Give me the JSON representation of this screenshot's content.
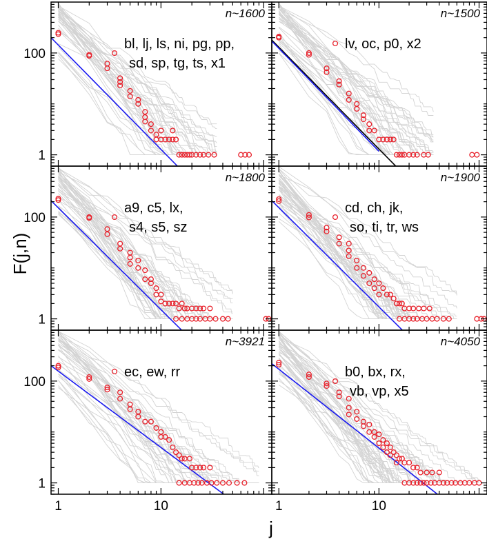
{
  "chart_data": {
    "type": "scatter",
    "xscale": "log",
    "yscale": "log",
    "xlabel": "j",
    "ylabel": "F(j,n)",
    "xlim": [
      0.85,
      120
    ],
    "ylim": [
      0.6,
      1000
    ],
    "xticks": [
      1,
      10
    ],
    "xtick_labels": [
      "1",
      "10"
    ],
    "yticks": [
      1,
      100
    ],
    "ytick_labels": [
      "1",
      "100"
    ],
    "colors": {
      "points": "#e8212b",
      "fit": "#1a1af0",
      "fit_alt": "#000000",
      "background_curves": "#d3d3d3"
    },
    "panels": [
      {
        "id": "p1",
        "n_label": "n~1600",
        "legend_lines": [
          "bl, lj, ls, ni, pg, pp,",
          "sd, sp, tg, ts, x1"
        ],
        "fit_color": "blue",
        "fit": {
          "x1": 0.85,
          "y1": 200,
          "slope": -2.05
        },
        "curves": 40,
        "xmax": 35,
        "points": [
          [
            1,
            250
          ],
          [
            1,
            235
          ],
          [
            2,
            92
          ],
          [
            2,
            88
          ],
          [
            3,
            62
          ],
          [
            3,
            50
          ],
          [
            4,
            32
          ],
          [
            4,
            27
          ],
          [
            4,
            23
          ],
          [
            5,
            18
          ],
          [
            5,
            14
          ],
          [
            6,
            12
          ],
          [
            6,
            10
          ],
          [
            7,
            7
          ],
          [
            7,
            5.5
          ],
          [
            7,
            4.5
          ],
          [
            8,
            4
          ],
          [
            8,
            3
          ],
          [
            9,
            2.5
          ],
          [
            9,
            2
          ],
          [
            10,
            3
          ],
          [
            10,
            2
          ],
          [
            11,
            2
          ],
          [
            12,
            2
          ],
          [
            13,
            3
          ],
          [
            13,
            2
          ],
          [
            14,
            2
          ],
          [
            15,
            1
          ],
          [
            16,
            1
          ],
          [
            17,
            1
          ],
          [
            18,
            1
          ],
          [
            19,
            1
          ],
          [
            20,
            1
          ],
          [
            22,
            1
          ],
          [
            24,
            1
          ],
          [
            26,
            1
          ],
          [
            29,
            1
          ],
          [
            33,
            1
          ],
          [
            60,
            1
          ],
          [
            66,
            1
          ],
          [
            72,
            1
          ]
        ]
      },
      {
        "id": "p2",
        "n_label": "n~1500",
        "legend_lines": [
          "lv, oc, p0, x2"
        ],
        "fit_color": "both",
        "fit": {
          "x1": 0.85,
          "y1": 180,
          "slope": -2.0
        },
        "curves": 40,
        "xmax": 35,
        "points": [
          [
            1,
            210
          ],
          [
            1,
            200
          ],
          [
            2,
            100
          ],
          [
            2,
            92
          ],
          [
            3,
            50
          ],
          [
            3,
            42
          ],
          [
            4,
            28
          ],
          [
            4,
            24
          ],
          [
            5,
            16
          ],
          [
            5,
            12
          ],
          [
            6,
            10
          ],
          [
            6,
            8
          ],
          [
            7,
            6
          ],
          [
            7,
            5
          ],
          [
            8,
            4
          ],
          [
            8,
            3
          ],
          [
            9,
            3
          ],
          [
            10,
            2
          ],
          [
            11,
            2
          ],
          [
            12,
            2
          ],
          [
            13,
            2
          ],
          [
            14,
            2
          ],
          [
            15,
            1
          ],
          [
            16,
            1
          ],
          [
            17,
            1
          ],
          [
            18,
            1
          ],
          [
            20,
            1
          ],
          [
            22,
            1
          ],
          [
            24,
            1
          ],
          [
            28,
            1
          ],
          [
            31,
            1
          ],
          [
            85,
            1
          ],
          [
            95,
            1
          ]
        ]
      },
      {
        "id": "p3",
        "n_label": "n~1800",
        "legend_lines": [
          "a9, c5, lx,",
          "s4, s5, sz"
        ],
        "fit_color": "blue",
        "fit": {
          "x1": 0.85,
          "y1": 210,
          "slope": -2.0
        },
        "curves": 45,
        "xmax": 50,
        "points": [
          [
            1,
            230
          ],
          [
            1,
            215
          ],
          [
            2,
            100
          ],
          [
            2,
            96
          ],
          [
            3,
            58
          ],
          [
            3,
            46
          ],
          [
            4,
            30
          ],
          [
            4,
            24
          ],
          [
            5,
            20
          ],
          [
            5,
            16
          ],
          [
            5,
            12
          ],
          [
            6,
            14
          ],
          [
            6,
            10
          ],
          [
            7,
            9
          ],
          [
            7,
            6
          ],
          [
            8,
            6
          ],
          [
            8,
            5
          ],
          [
            9,
            4
          ],
          [
            9,
            3
          ],
          [
            10,
            3
          ],
          [
            10,
            2.2
          ],
          [
            11,
            2
          ],
          [
            12,
            2
          ],
          [
            13,
            2
          ],
          [
            14,
            2
          ],
          [
            15,
            1.6
          ],
          [
            16,
            2
          ],
          [
            17,
            1.6
          ],
          [
            18,
            1.6
          ],
          [
            20,
            1.6
          ],
          [
            22,
            1.6
          ],
          [
            24,
            1.6
          ],
          [
            26,
            1.6
          ],
          [
            30,
            1.6
          ],
          [
            14,
            1
          ],
          [
            16,
            1
          ],
          [
            18,
            1
          ],
          [
            20,
            1
          ],
          [
            22,
            1
          ],
          [
            24,
            1
          ],
          [
            27,
            1
          ],
          [
            30,
            1
          ],
          [
            34,
            1
          ],
          [
            40,
            1
          ],
          [
            45,
            1
          ],
          [
            105,
            1
          ],
          [
            112,
            1
          ]
        ]
      },
      {
        "id": "p4",
        "n_label": "n~1900",
        "legend_lines": [
          "cd, ch, jk,",
          "so, ti, tr, ws"
        ],
        "fit_color": "blue",
        "fit": {
          "x1": 0.85,
          "y1": 210,
          "slope": -1.95
        },
        "curves": 45,
        "xmax": 60,
        "points": [
          [
            1,
            225
          ],
          [
            1,
            205
          ],
          [
            2,
            110
          ],
          [
            2,
            98
          ],
          [
            3,
            62
          ],
          [
            3,
            52
          ],
          [
            4,
            40
          ],
          [
            4,
            30
          ],
          [
            5,
            30
          ],
          [
            5,
            22
          ],
          [
            5,
            17
          ],
          [
            6,
            14
          ],
          [
            6,
            10
          ],
          [
            7,
            10
          ],
          [
            7,
            7
          ],
          [
            8,
            8
          ],
          [
            8,
            5
          ],
          [
            9,
            6
          ],
          [
            9,
            4
          ],
          [
            10,
            5
          ],
          [
            10,
            3
          ],
          [
            11,
            4
          ],
          [
            12,
            3
          ],
          [
            13,
            3
          ],
          [
            14,
            2.5
          ],
          [
            15,
            2
          ],
          [
            16,
            2
          ],
          [
            17,
            2
          ],
          [
            18,
            1.6
          ],
          [
            20,
            1.6
          ],
          [
            22,
            1.6
          ],
          [
            25,
            1.6
          ],
          [
            28,
            1.6
          ],
          [
            32,
            1.6
          ],
          [
            16,
            1
          ],
          [
            18,
            1
          ],
          [
            20,
            1
          ],
          [
            22,
            1
          ],
          [
            24,
            1
          ],
          [
            27,
            1
          ],
          [
            30,
            1
          ],
          [
            34,
            1
          ],
          [
            38,
            1
          ],
          [
            44,
            1
          ],
          [
            50,
            1
          ],
          [
            95,
            1
          ],
          [
            105,
            1
          ],
          [
            112,
            1
          ]
        ]
      },
      {
        "id": "p5",
        "n_label": "n~3921",
        "legend_lines": [
          "ec, ew, rr"
        ],
        "fit_color": "blue",
        "fit": {
          "x1": 0.85,
          "y1": 200,
          "slope": -1.5
        },
        "curves": 40,
        "xmax": 90,
        "points": [
          [
            1,
            200
          ],
          [
            1,
            185
          ],
          [
            2,
            120
          ],
          [
            2,
            110
          ],
          [
            3,
            75
          ],
          [
            3,
            68
          ],
          [
            4,
            60
          ],
          [
            4,
            45
          ],
          [
            5,
            35
          ],
          [
            5,
            28
          ],
          [
            6,
            25
          ],
          [
            6,
            20
          ],
          [
            7,
            16
          ],
          [
            8,
            16
          ],
          [
            9,
            12
          ],
          [
            10,
            10
          ],
          [
            10,
            8
          ],
          [
            11,
            8
          ],
          [
            12,
            7
          ],
          [
            13,
            5
          ],
          [
            14,
            4
          ],
          [
            15,
            3.5
          ],
          [
            16,
            3
          ],
          [
            17,
            3
          ],
          [
            19,
            3
          ],
          [
            20,
            2
          ],
          [
            22,
            2
          ],
          [
            24,
            2
          ],
          [
            26,
            2
          ],
          [
            30,
            2
          ],
          [
            15,
            1
          ],
          [
            17,
            1
          ],
          [
            19,
            1
          ],
          [
            21,
            1
          ],
          [
            23,
            1
          ],
          [
            25,
            1
          ],
          [
            28,
            1
          ],
          [
            31,
            1
          ],
          [
            35,
            1
          ],
          [
            40,
            1
          ],
          [
            46,
            1
          ],
          [
            55,
            1
          ],
          [
            65,
            1
          ]
        ]
      },
      {
        "id": "p6",
        "n_label": "n~4050",
        "legend_lines": [
          "b0, bx, rx,",
          "vb, vp, x5"
        ],
        "fit_color": "blue",
        "fit": {
          "x1": 0.85,
          "y1": 220,
          "slope": -1.55
        },
        "curves": 50,
        "xmax": 100,
        "points": [
          [
            1,
            230
          ],
          [
            1,
            210
          ],
          [
            2,
            135
          ],
          [
            2,
            120
          ],
          [
            3,
            90
          ],
          [
            3,
            80
          ],
          [
            4,
            60
          ],
          [
            4,
            50
          ],
          [
            5,
            45
          ],
          [
            5,
            30
          ],
          [
            5,
            22
          ],
          [
            6,
            25
          ],
          [
            6,
            18
          ],
          [
            7,
            16
          ],
          [
            7,
            13
          ],
          [
            8,
            14
          ],
          [
            8,
            10
          ],
          [
            9,
            10
          ],
          [
            9,
            8
          ],
          [
            10,
            9
          ],
          [
            10,
            6
          ],
          [
            11,
            7
          ],
          [
            11,
            5
          ],
          [
            12,
            6
          ],
          [
            12,
            4
          ],
          [
            13,
            5
          ],
          [
            13,
            3.5
          ],
          [
            14,
            4
          ],
          [
            15,
            3.5
          ],
          [
            15,
            2.5
          ],
          [
            16,
            3
          ],
          [
            17,
            3
          ],
          [
            18,
            2.5
          ],
          [
            20,
            2.5
          ],
          [
            22,
            2
          ],
          [
            24,
            2
          ],
          [
            26,
            1.6
          ],
          [
            30,
            1.6
          ],
          [
            34,
            1.6
          ],
          [
            40,
            1.6
          ],
          [
            18,
            1
          ],
          [
            20,
            1
          ],
          [
            22,
            1
          ],
          [
            24,
            1
          ],
          [
            26,
            1
          ],
          [
            28,
            1
          ],
          [
            30,
            1
          ],
          [
            33,
            1
          ],
          [
            36,
            1
          ],
          [
            40,
            1
          ],
          [
            44,
            1
          ],
          [
            48,
            1
          ],
          [
            53,
            1
          ],
          [
            58,
            1
          ],
          [
            65,
            1
          ],
          [
            72,
            1
          ],
          [
            80,
            1
          ],
          [
            90,
            1
          ],
          [
            100,
            1
          ]
        ]
      }
    ]
  }
}
